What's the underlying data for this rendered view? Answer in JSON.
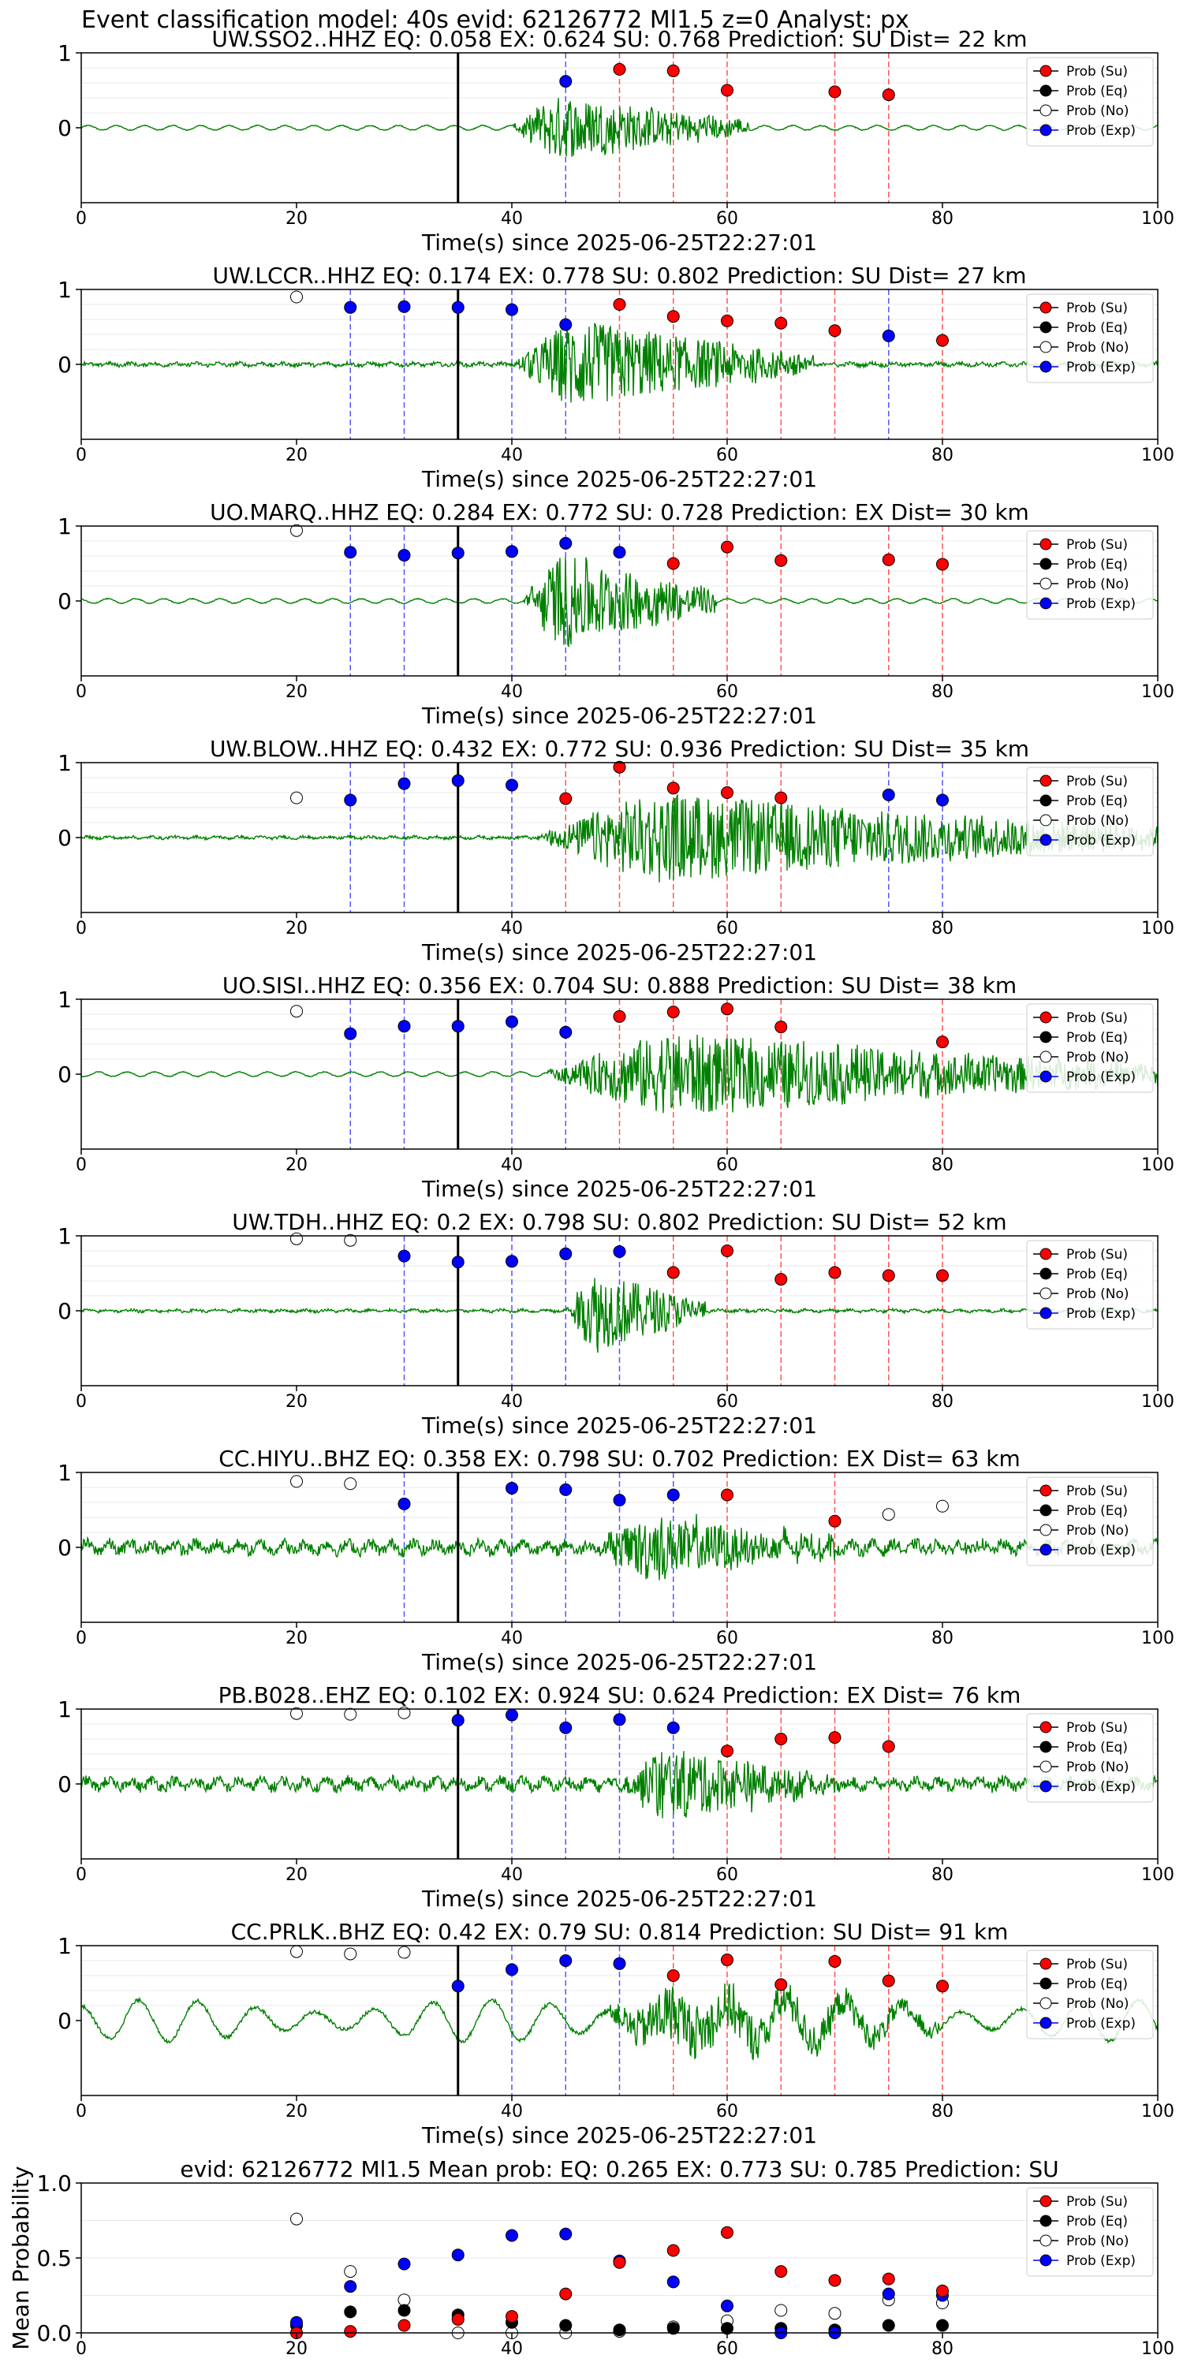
{
  "figure": {
    "suptitle": "Event classification model: 40s evid: 62126772 Ml1.5 z=0 Analyst: px",
    "colors": {
      "su": "#ff0000",
      "eq": "#000000",
      "no": "#ffffff",
      "exp": "#0000ff",
      "trace": "#008000",
      "su_line": "#ff5555",
      "exp_line": "#5555ff",
      "origin_line": "#000000"
    },
    "legend_labels": [
      "Prob (Su)",
      "Prob (Eq)",
      "Prob (No)",
      "Prob (Exp)"
    ]
  },
  "chart_data": [
    {
      "type": "scatter",
      "title": "UW.SSO2..HHZ   EQ: 0.058  EX: 0.624  SU: 0.768   Prediction: SU    Dist= 22 km",
      "xlabel": "Time(s) since 2025-06-25T22:27:01",
      "xlim": [
        0,
        100
      ],
      "xticks": [
        0,
        20,
        40,
        60,
        80,
        100
      ],
      "yticks": [
        0,
        1
      ],
      "origin_time": 35,
      "legend_position": "top-right",
      "onset": 40,
      "noise_amp": 0.03,
      "noise_kind": "smooth",
      "signal_amp": 0.55,
      "signal_start": 40,
      "signal_end": 62,
      "su": [
        [
          50,
          0.78
        ],
        [
          55,
          0.76
        ],
        [
          60,
          0.5
        ],
        [
          70,
          0.48
        ],
        [
          75,
          0.44
        ]
      ],
      "exp": [
        [
          45,
          0.62
        ]
      ],
      "no": [],
      "eq": []
    },
    {
      "type": "scatter",
      "title": "UW.LCCR..HHZ   EQ: 0.174  EX: 0.778  SU: 0.802   Prediction: SU    Dist= 27 km",
      "xlabel": "Time(s) since 2025-06-25T22:27:01",
      "xlim": [
        0,
        100
      ],
      "xticks": [
        0,
        20,
        40,
        60,
        80,
        100
      ],
      "yticks": [
        0,
        1
      ],
      "origin_time": 35,
      "legend_position": "top-right",
      "noise_amp": 0.04,
      "noise_kind": "jagged",
      "signal_amp": 0.75,
      "signal_start": 40,
      "signal_end": 68,
      "su": [
        [
          50,
          0.8
        ],
        [
          55,
          0.64
        ],
        [
          60,
          0.58
        ],
        [
          65,
          0.55
        ],
        [
          70,
          0.45
        ],
        [
          80,
          0.32
        ]
      ],
      "exp": [
        [
          25,
          0.76
        ],
        [
          30,
          0.77
        ],
        [
          35,
          0.76
        ],
        [
          40,
          0.73
        ],
        [
          45,
          0.53
        ],
        [
          75,
          0.38
        ]
      ],
      "no": [
        [
          20,
          0.9
        ]
      ],
      "eq": []
    },
    {
      "type": "scatter",
      "title": "UO.MARQ..HHZ   EQ: 0.284  EX: 0.772  SU: 0.728   Prediction: EX    Dist= 30 km",
      "xlabel": "Time(s) since 2025-06-25T22:27:01",
      "xlim": [
        0,
        100
      ],
      "xticks": [
        0,
        20,
        40,
        60,
        80,
        100
      ],
      "yticks": [
        0,
        1
      ],
      "origin_time": 35,
      "legend_position": "top-right",
      "noise_amp": 0.03,
      "noise_kind": "smooth",
      "signal_amp": 0.8,
      "signal_start": 41,
      "signal_end": 59,
      "su": [
        [
          55,
          0.5
        ],
        [
          60,
          0.72
        ],
        [
          65,
          0.54
        ],
        [
          75,
          0.55
        ],
        [
          80,
          0.49
        ]
      ],
      "exp": [
        [
          25,
          0.65
        ],
        [
          30,
          0.61
        ],
        [
          35,
          0.64
        ],
        [
          40,
          0.66
        ],
        [
          45,
          0.77
        ],
        [
          50,
          0.65
        ]
      ],
      "no": [
        [
          20,
          0.94
        ]
      ],
      "eq": []
    },
    {
      "type": "scatter",
      "title": "UW.BLOW..HHZ   EQ: 0.432  EX: 0.772  SU: 0.936   Prediction: SU    Dist= 35 km",
      "xlabel": "Time(s) since 2025-06-25T22:27:01",
      "xlim": [
        0,
        100
      ],
      "xticks": [
        0,
        20,
        40,
        60,
        80,
        100
      ],
      "yticks": [
        0,
        1
      ],
      "origin_time": 35,
      "legend_position": "top-right",
      "noise_amp": 0.03,
      "noise_kind": "jagged",
      "signal_amp": 0.75,
      "signal_start": 42,
      "signal_end": 100,
      "su": [
        [
          45,
          0.52
        ],
        [
          50,
          0.94
        ],
        [
          55,
          0.66
        ],
        [
          60,
          0.6
        ],
        [
          65,
          0.53
        ]
      ],
      "exp": [
        [
          25,
          0.5
        ],
        [
          30,
          0.72
        ],
        [
          35,
          0.76
        ],
        [
          40,
          0.7
        ],
        [
          75,
          0.57
        ],
        [
          80,
          0.5
        ]
      ],
      "no": [
        [
          20,
          0.53
        ]
      ],
      "eq": []
    },
    {
      "type": "scatter",
      "title": "UO.SISI..HHZ   EQ: 0.356  EX: 0.704  SU: 0.888   Prediction: SU    Dist= 38 km",
      "xlabel": "Time(s) since 2025-06-25T22:27:01",
      "xlim": [
        0,
        100
      ],
      "xticks": [
        0,
        20,
        40,
        60,
        80,
        100
      ],
      "yticks": [
        0,
        1
      ],
      "origin_time": 35,
      "legend_position": "top-right",
      "noise_amp": 0.03,
      "noise_kind": "smooth",
      "signal_amp": 0.7,
      "signal_start": 43,
      "signal_end": 100,
      "su": [
        [
          50,
          0.77
        ],
        [
          55,
          0.83
        ],
        [
          60,
          0.87
        ],
        [
          65,
          0.63
        ],
        [
          80,
          0.43
        ]
      ],
      "exp": [
        [
          25,
          0.54
        ],
        [
          30,
          0.64
        ],
        [
          35,
          0.64
        ],
        [
          40,
          0.7
        ],
        [
          45,
          0.56
        ]
      ],
      "no": [
        [
          20,
          0.84
        ]
      ],
      "eq": []
    },
    {
      "type": "scatter",
      "title": "UW.TDH..HHZ   EQ: 0.2  EX: 0.798  SU: 0.802   Prediction: SU    Dist= 52 km",
      "xlabel": "Time(s) since 2025-06-25T22:27:01",
      "xlim": [
        0,
        100
      ],
      "xticks": [
        0,
        20,
        40,
        60,
        80,
        100
      ],
      "yticks": [
        0,
        1
      ],
      "origin_time": 35,
      "legend_position": "top-right",
      "noise_amp": 0.03,
      "noise_kind": "jagged",
      "signal_amp": 0.7,
      "signal_start": 45,
      "signal_end": 58,
      "su": [
        [
          55,
          0.51
        ],
        [
          60,
          0.8
        ],
        [
          65,
          0.42
        ],
        [
          70,
          0.51
        ],
        [
          75,
          0.47
        ],
        [
          80,
          0.47
        ]
      ],
      "exp": [
        [
          30,
          0.73
        ],
        [
          35,
          0.65
        ],
        [
          40,
          0.66
        ],
        [
          45,
          0.76
        ],
        [
          50,
          0.79
        ]
      ],
      "no": [
        [
          20,
          0.96
        ],
        [
          25,
          0.94
        ]
      ],
      "eq": []
    },
    {
      "type": "scatter",
      "title": "CC.HIYU..BHZ   EQ: 0.358  EX: 0.798  SU: 0.702   Prediction: EX    Dist= 63 km",
      "xlabel": "Time(s) since 2025-06-25T22:27:01",
      "xlim": [
        0,
        100
      ],
      "xticks": [
        0,
        20,
        40,
        60,
        80,
        100
      ],
      "yticks": [
        0,
        1
      ],
      "origin_time": 35,
      "legend_position": "top-right",
      "noise_amp": 0.13,
      "noise_kind": "jagged",
      "signal_amp": 0.55,
      "signal_start": 48,
      "signal_end": 70,
      "su": [
        [
          60,
          0.7
        ],
        [
          70,
          0.35
        ]
      ],
      "exp": [
        [
          30,
          0.58
        ],
        [
          40,
          0.79
        ],
        [
          45,
          0.77
        ],
        [
          50,
          0.63
        ],
        [
          55,
          0.7
        ]
      ],
      "no": [
        [
          20,
          0.88
        ],
        [
          25,
          0.85
        ],
        [
          75,
          0.44
        ],
        [
          80,
          0.55
        ]
      ],
      "eq": []
    },
    {
      "type": "scatter",
      "title": "PB.B028..EHZ   EQ: 0.102  EX: 0.924  SU: 0.624   Prediction: EX    Dist= 76 km",
      "xlabel": "Time(s) since 2025-06-25T22:27:01",
      "xlim": [
        0,
        100
      ],
      "xticks": [
        0,
        20,
        40,
        60,
        80,
        100
      ],
      "yticks": [
        0,
        1
      ],
      "origin_time": 35,
      "legend_position": "top-right",
      "noise_amp": 0.12,
      "noise_kind": "jagged",
      "signal_amp": 0.6,
      "signal_start": 50,
      "signal_end": 70,
      "su": [
        [
          60,
          0.44
        ],
        [
          65,
          0.6
        ],
        [
          70,
          0.62
        ],
        [
          75,
          0.5
        ]
      ],
      "exp": [
        [
          35,
          0.85
        ],
        [
          40,
          0.92
        ],
        [
          45,
          0.75
        ],
        [
          50,
          0.86
        ],
        [
          55,
          0.75
        ]
      ],
      "no": [
        [
          20,
          0.94
        ],
        [
          25,
          0.93
        ],
        [
          30,
          0.95
        ]
      ],
      "eq": []
    },
    {
      "type": "scatter",
      "title": "CC.PRLK..BHZ   EQ: 0.42  EX: 0.79  SU: 0.814   Prediction: SU    Dist= 91 km",
      "xlabel": "Time(s) since 2025-06-25T22:27:01",
      "xlim": [
        0,
        100
      ],
      "xticks": [
        0,
        20,
        40,
        60,
        80,
        100
      ],
      "yticks": [
        0,
        1
      ],
      "origin_time": 35,
      "legend_position": "top-right",
      "noise_amp": 0.28,
      "noise_kind": "wavy",
      "signal_amp": 0.5,
      "signal_start": 48,
      "signal_end": 80,
      "su": [
        [
          55,
          0.6
        ],
        [
          60,
          0.81
        ],
        [
          65,
          0.48
        ],
        [
          70,
          0.79
        ],
        [
          75,
          0.53
        ],
        [
          80,
          0.46
        ]
      ],
      "exp": [
        [
          35,
          0.46
        ],
        [
          40,
          0.68
        ],
        [
          45,
          0.8
        ],
        [
          50,
          0.76
        ]
      ],
      "no": [
        [
          20,
          0.92
        ],
        [
          25,
          0.89
        ],
        [
          30,
          0.91
        ]
      ],
      "eq": []
    },
    {
      "type": "scatter",
      "title": "evid: 62126772  Ml1.5   Mean prob:    EQ: 0.265  EX: 0.773  SU: 0.785   Prediction: SU",
      "xlabel": "",
      "ylabel": "Mean Probability",
      "xlim": [
        0,
        100
      ],
      "ylim": [
        0,
        1
      ],
      "xticks": [
        0,
        20,
        40,
        60,
        80,
        100
      ],
      "yticks": [
        0.0,
        0.5,
        1.0
      ],
      "legend_position": "top-right",
      "su": [
        [
          20,
          0.0
        ],
        [
          25,
          0.01
        ],
        [
          30,
          0.05
        ],
        [
          35,
          0.09
        ],
        [
          40,
          0.11
        ],
        [
          45,
          0.26
        ],
        [
          50,
          0.47
        ],
        [
          55,
          0.55
        ],
        [
          60,
          0.67
        ],
        [
          65,
          0.41
        ],
        [
          70,
          0.35
        ],
        [
          75,
          0.36
        ],
        [
          80,
          0.28
        ]
      ],
      "eq": [
        [
          20,
          0.05
        ],
        [
          25,
          0.14
        ],
        [
          30,
          0.15
        ],
        [
          35,
          0.12
        ],
        [
          40,
          0.07
        ],
        [
          45,
          0.05
        ],
        [
          50,
          0.02
        ],
        [
          55,
          0.03
        ],
        [
          60,
          0.03
        ],
        [
          65,
          0.03
        ],
        [
          70,
          0.02
        ],
        [
          75,
          0.05
        ],
        [
          80,
          0.05
        ]
      ],
      "no": [
        [
          20,
          0.76
        ],
        [
          25,
          0.41
        ],
        [
          30,
          0.22
        ],
        [
          35,
          0.0
        ],
        [
          40,
          0.0
        ],
        [
          45,
          0.0
        ],
        [
          50,
          0.01
        ],
        [
          55,
          0.04
        ],
        [
          60,
          0.08
        ],
        [
          65,
          0.15
        ],
        [
          70,
          0.13
        ],
        [
          75,
          0.22
        ],
        [
          80,
          0.2
        ]
      ],
      "exp": [
        [
          20,
          0.07
        ],
        [
          25,
          0.31
        ],
        [
          30,
          0.46
        ],
        [
          35,
          0.52
        ],
        [
          40,
          0.65
        ],
        [
          45,
          0.66
        ],
        [
          50,
          0.48
        ],
        [
          55,
          0.34
        ],
        [
          60,
          0.18
        ],
        [
          65,
          0.0
        ],
        [
          70,
          0.0
        ],
        [
          75,
          0.26
        ],
        [
          80,
          0.25
        ]
      ]
    }
  ]
}
